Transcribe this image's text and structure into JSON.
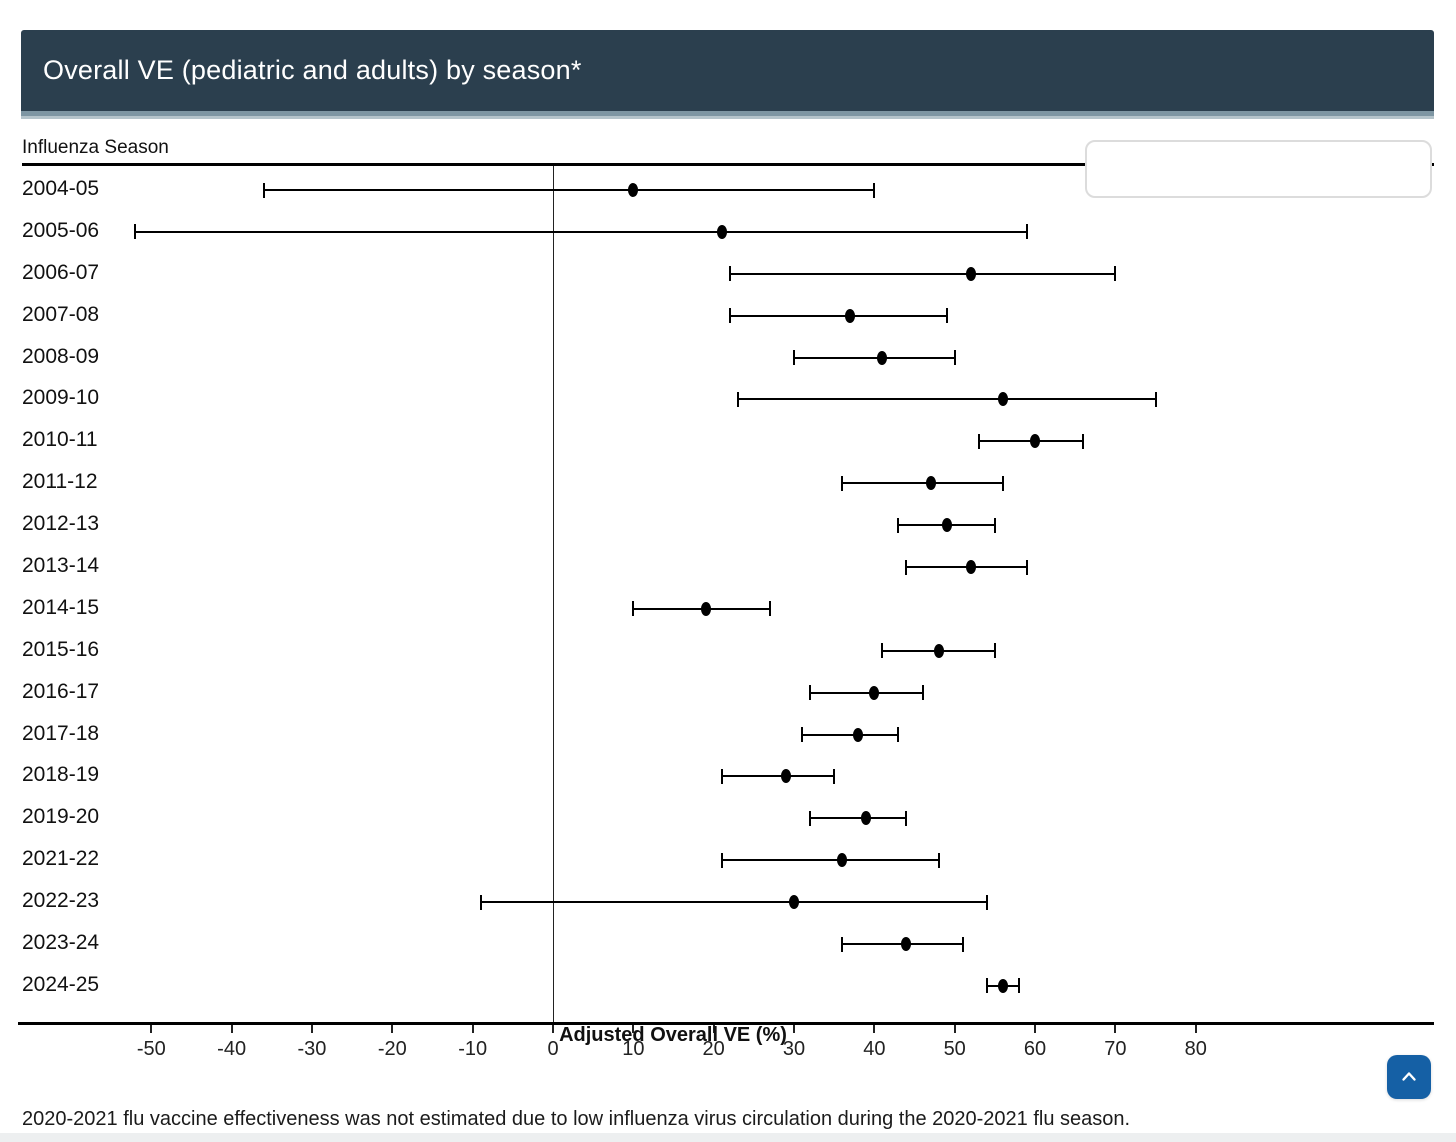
{
  "header": {
    "title": "Overall VE (pediatric and adults) by season*"
  },
  "chart": {
    "y_axis_title": "Influenza Season",
    "x_axis_title": "Adjusted Overall VE (%)"
  },
  "chart_data": {
    "type": "scatter",
    "subtype": "forest-plot-error-bars",
    "title": "Overall VE (pediatric and adults) by season*",
    "xlabel": "Adjusted Overall VE (%)",
    "ylabel": "Influenza Season",
    "xlim": [
      -66,
      110
    ],
    "x_ticks": [
      -50,
      -40,
      -30,
      -20,
      -10,
      0,
      10,
      20,
      30,
      40,
      50,
      60,
      70,
      80
    ],
    "grid": false,
    "legend": {
      "position": "top-right",
      "entries": []
    },
    "reference_line_x": 0,
    "points": [
      {
        "season": "2004-05",
        "ve": 10,
        "ci_low": -36,
        "ci_high": 40
      },
      {
        "season": "2005-06",
        "ve": 21,
        "ci_low": -52,
        "ci_high": 59
      },
      {
        "season": "2006-07",
        "ve": 52,
        "ci_low": 22,
        "ci_high": 70
      },
      {
        "season": "2007-08",
        "ve": 37,
        "ci_low": 22,
        "ci_high": 49
      },
      {
        "season": "2008-09",
        "ve": 41,
        "ci_low": 30,
        "ci_high": 50
      },
      {
        "season": "2009-10",
        "ve": 56,
        "ci_low": 23,
        "ci_high": 75
      },
      {
        "season": "2010-11",
        "ve": 60,
        "ci_low": 53,
        "ci_high": 66
      },
      {
        "season": "2011-12",
        "ve": 47,
        "ci_low": 36,
        "ci_high": 56
      },
      {
        "season": "2012-13",
        "ve": 49,
        "ci_low": 43,
        "ci_high": 55
      },
      {
        "season": "2013-14",
        "ve": 52,
        "ci_low": 44,
        "ci_high": 59
      },
      {
        "season": "2014-15",
        "ve": 19,
        "ci_low": 10,
        "ci_high": 27
      },
      {
        "season": "2015-16",
        "ve": 48,
        "ci_low": 41,
        "ci_high": 55
      },
      {
        "season": "2016-17",
        "ve": 40,
        "ci_low": 32,
        "ci_high": 46
      },
      {
        "season": "2017-18",
        "ve": 38,
        "ci_low": 31,
        "ci_high": 43
      },
      {
        "season": "2018-19",
        "ve": 29,
        "ci_low": 21,
        "ci_high": 35
      },
      {
        "season": "2019-20",
        "ve": 39,
        "ci_low": 32,
        "ci_high": 44
      },
      {
        "season": "2021-22",
        "ve": 36,
        "ci_low": 21,
        "ci_high": 48
      },
      {
        "season": "2022-23",
        "ve": 30,
        "ci_low": -9,
        "ci_high": 54
      },
      {
        "season": "2023-24",
        "ve": 44,
        "ci_low": 36,
        "ci_high": 51
      },
      {
        "season": "2024-25",
        "ve": 56,
        "ci_low": 54,
        "ci_high": 58
      }
    ]
  },
  "footnote": "2020-2021 flu vaccine effectiveness was not estimated due to low influenza virus circulation during the 2020-2021 flu season.",
  "scroll_top_button": {
    "icon": "chevron-up"
  },
  "colors": {
    "header_bg": "#2b3f4e",
    "header_trim_dark": "#7e96a3",
    "header_trim_light": "#b5c4cb",
    "marker": "#000000",
    "button_bg": "#1560a5",
    "bottom_strip": "#edeff0"
  }
}
